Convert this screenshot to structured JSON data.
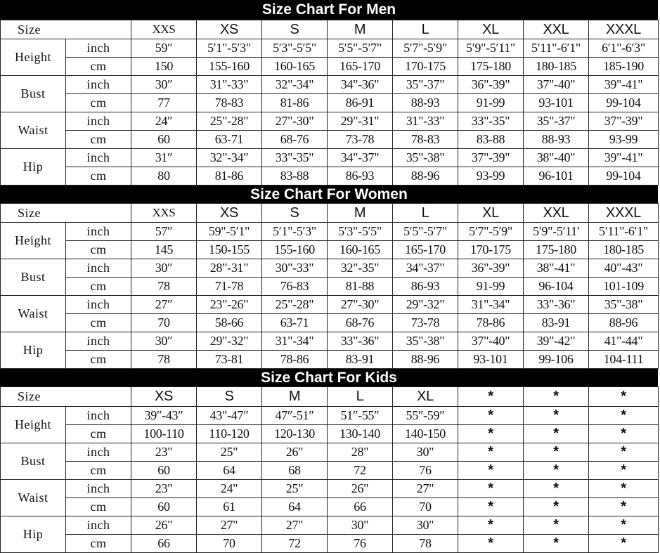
{
  "sections": [
    {
      "title": "Size Chart For Men",
      "size_label": "Size",
      "sizes": [
        "XXS",
        "XS",
        "S",
        "M",
        "L",
        "XL",
        "XXL",
        "XXXL"
      ],
      "measurements": [
        {
          "name": "Height",
          "rows": [
            {
              "unit": "inch",
              "values": [
                "59″",
                "5′1\"-5′3\"",
                "5′3\"-5′5\"",
                "5′5\"-5′7\"",
                "5′7\"-5′9\"",
                "5′9\"-5′11\"",
                "5′11\"-6′1\"",
                "6′1\"-6′3\""
              ]
            },
            {
              "unit": "cm",
              "values": [
                "150",
                "155-160",
                "160-165",
                "165-170",
                "170-175",
                "175-180",
                "180-185",
                "185-190"
              ]
            }
          ]
        },
        {
          "name": "Bust",
          "rows": [
            {
              "unit": "inch",
              "values": [
                "30″",
                "31\"-33\"",
                "32\"-34\"",
                "34\"-36\"",
                "35\"-37\"",
                "36\"-39\"",
                "37\"-40\"",
                "39\"-41\""
              ]
            },
            {
              "unit": "cm",
              "values": [
                "77",
                "78-83",
                "81-86",
                "86-91",
                "88-93",
                "91-99",
                "93-101",
                "99-104"
              ]
            }
          ]
        },
        {
          "name": "Waist",
          "rows": [
            {
              "unit": "inch",
              "values": [
                "24″",
                "25\"-28\"",
                "27\"-30\"",
                "29\"-31\"",
                "31\"-33\"",
                "33\"-35\"",
                "35\"-37\"",
                "37\"-39\""
              ]
            },
            {
              "unit": "cm",
              "values": [
                "60",
                "63-71",
                "68-76",
                "73-78",
                "78-83",
                "83-88",
                "88-93",
                "93-99"
              ]
            }
          ]
        },
        {
          "name": "Hip",
          "rows": [
            {
              "unit": "inch",
              "values": [
                "31″",
                "32\"-34\"",
                "33\"-35\"",
                "34\"-37\"",
                "35\"-38\"",
                "37\"-39\"",
                "38\"-40\"",
                "39\"-41\""
              ]
            },
            {
              "unit": "cm",
              "values": [
                "80",
                "81-86",
                "83-88",
                "86-93",
                "88-96",
                "93-99",
                "96-101",
                "99-104"
              ]
            }
          ]
        }
      ]
    },
    {
      "title": "Size Chart For Women",
      "size_label": "Size",
      "sizes": [
        "XXS",
        "XS",
        "S",
        "M",
        "L",
        "XL",
        "XXL",
        "XXXL"
      ],
      "measurements": [
        {
          "name": "Height",
          "rows": [
            {
              "unit": "inch",
              "values": [
                "57″",
                "59\"-5′1\"",
                "5′1\"-5′3\"",
                "5′3\"-5′5\"",
                "5′5\"-5′7\"",
                "5′7\"-5′9\"",
                "5′9\"-5′11'",
                "5′11\"-6′1\""
              ]
            },
            {
              "unit": "cm",
              "values": [
                "145",
                "150-155",
                "155-160",
                "160-165",
                "165-170",
                "170-175",
                "175-180",
                "180-185"
              ]
            }
          ]
        },
        {
          "name": "Bust",
          "rows": [
            {
              "unit": "inch",
              "values": [
                "30″",
                "28\"-31\"",
                "30\"-33\"",
                "32\"-35\"",
                "34\"-37\"",
                "36\"-39\"",
                "38\"-41\"",
                "40\"-43\""
              ]
            },
            {
              "unit": "cm",
              "values": [
                "78",
                "71-78",
                "76-83",
                "81-88",
                "86-93",
                "91-99",
                "96-104",
                "101-109"
              ]
            }
          ]
        },
        {
          "name": "Waist",
          "rows": [
            {
              "unit": "inch",
              "values": [
                "27″",
                "23\"-26\"",
                "25\"-28\"",
                "27\"-30\"",
                "29\"-32\"",
                "31\"-34\"",
                "33\"-36\"",
                "35\"-38\""
              ]
            },
            {
              "unit": "cm",
              "values": [
                "70",
                "58-66",
                "63-71",
                "68-76",
                "73-78",
                "78-86",
                "83-91",
                "88-96"
              ]
            }
          ]
        },
        {
          "name": "Hip",
          "rows": [
            {
              "unit": "inch",
              "values": [
                "30″",
                "29\"-32\"",
                "31\"-34\"",
                "33\"-36\"",
                "35\"-38\"",
                "37\"-40\"",
                "39\"-42\"",
                "41\"-44\""
              ]
            },
            {
              "unit": "cm",
              "values": [
                "78",
                "73-81",
                "78-86",
                "83-91",
                "88-96",
                "93-101",
                "99-106",
                "104-111"
              ]
            }
          ]
        }
      ]
    },
    {
      "title": "Size Chart For Kids",
      "size_label": "Size",
      "sizes": [
        "XS",
        "S",
        "M",
        "L",
        "XL",
        "*",
        "*",
        "*"
      ],
      "measurements": [
        {
          "name": "Height",
          "rows": [
            {
              "unit": "inch",
              "values": [
                "39″-43″",
                "43″-47″",
                "47″-51″",
                "51″-55″",
                "55″-59″",
                "*",
                "*",
                "*"
              ]
            },
            {
              "unit": "cm",
              "values": [
                "100-110",
                "110-120",
                "120-130",
                "130-140",
                "140-150",
                "*",
                "*",
                "*"
              ]
            }
          ]
        },
        {
          "name": "Bust",
          "rows": [
            {
              "unit": "inch",
              "values": [
                "23\"",
                "25\"",
                "26\"",
                "28\"",
                "30\"",
                "*",
                "*",
                "*"
              ]
            },
            {
              "unit": "cm",
              "values": [
                "60",
                "64",
                "68",
                "72",
                "76",
                "*",
                "*",
                "*"
              ]
            }
          ]
        },
        {
          "name": "Waist",
          "rows": [
            {
              "unit": "inch",
              "values": [
                "23\"",
                "24\"",
                "25\"",
                "26\"",
                "27\"",
                "*",
                "*",
                "*"
              ]
            },
            {
              "unit": "cm",
              "values": [
                "60",
                "61",
                "64",
                "66",
                "70",
                "*",
                "*",
                "*"
              ]
            }
          ]
        },
        {
          "name": "Hip",
          "rows": [
            {
              "unit": "inch",
              "values": [
                "26\"",
                "27\"",
                "27\"",
                "30\"",
                "30\"",
                "*",
                "*",
                "*"
              ]
            },
            {
              "unit": "cm",
              "values": [
                "66",
                "70",
                "72",
                "76",
                "78",
                "*",
                "*",
                "*"
              ]
            }
          ]
        }
      ]
    }
  ]
}
